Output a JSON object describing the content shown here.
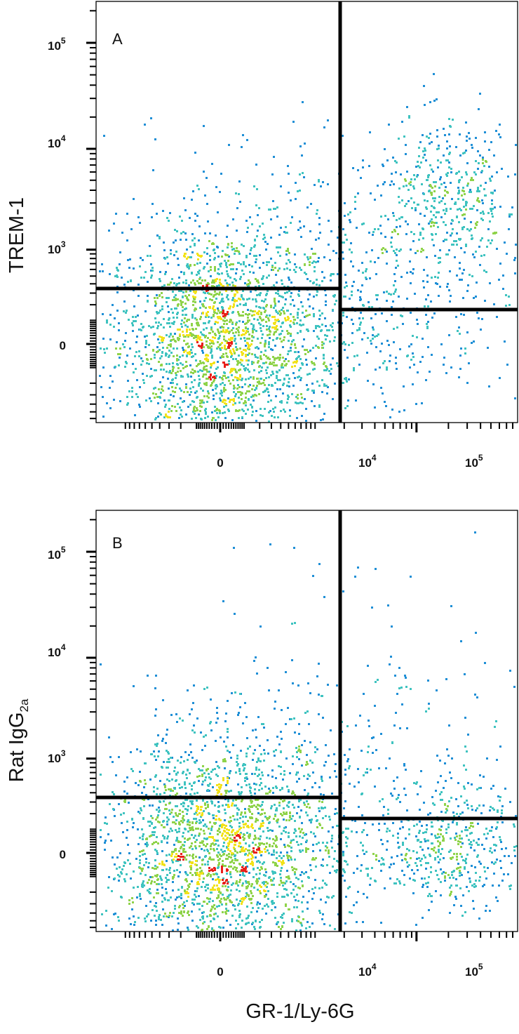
{
  "chart_data": [
    {
      "type": "scatter",
      "panel_label": "A",
      "ylabel": "TREM-1",
      "xlabel": "",
      "x_scale": "biexponential",
      "y_scale": "biexponential",
      "xticks": [
        {
          "base": "0",
          "exp": ""
        },
        {
          "base": "10",
          "exp": "4"
        },
        {
          "base": "10",
          "exp": "5"
        }
      ],
      "yticks": [
        {
          "base": "0",
          "exp": ""
        },
        {
          "base": "10",
          "exp": "3"
        },
        {
          "base": "10",
          "exp": "4"
        },
        {
          "base": "10",
          "exp": "5"
        }
      ],
      "quadrant_gates": {
        "x": 6500,
        "y_left": 400,
        "y_right": 240
      },
      "populations": [
        {
          "name": "",
          "center": [
            0,
            0
          ],
          "spread": [
            0.55,
            0.55
          ],
          "approx_events": 2300
        },
        {
          "name": "",
          "center": [
            2000,
            800
          ],
          "spread": [
            0.9,
            0.6
          ],
          "approx_events": 500
        },
        {
          "name": "",
          "center": [
            20000,
            3500
          ],
          "spread": [
            0.35,
            0.35
          ],
          "approx_events": 400
        },
        {
          "name": "",
          "center": [
            9000,
            60
          ],
          "spread": [
            0.4,
            0.45
          ],
          "approx_events": 120
        }
      ],
      "grid": false
    },
    {
      "type": "scatter",
      "panel_label": "B",
      "ylabel": "Rat IgG",
      "ylabel_sub": "2a",
      "xlabel": "GR-1/Ly-6G",
      "x_scale": "biexponential",
      "y_scale": "biexponential",
      "xticks": [
        {
          "base": "0",
          "exp": ""
        },
        {
          "base": "10",
          "exp": "4"
        },
        {
          "base": "10",
          "exp": "5"
        }
      ],
      "yticks": [
        {
          "base": "0",
          "exp": ""
        },
        {
          "base": "10",
          "exp": "3"
        },
        {
          "base": "10",
          "exp": "4"
        },
        {
          "base": "10",
          "exp": "5"
        }
      ],
      "quadrant_gates": {
        "x": 6500,
        "y_left": 400,
        "y_right": 240
      },
      "populations": [
        {
          "name": "",
          "center": [
            0,
            0
          ],
          "spread": [
            0.55,
            0.55
          ],
          "approx_events": 2300
        },
        {
          "name": "",
          "center": [
            1500,
            400
          ],
          "spread": [
            0.9,
            0.9
          ],
          "approx_events": 450
        },
        {
          "name": "",
          "center": [
            20000,
            40
          ],
          "spread": [
            0.35,
            0.3
          ],
          "approx_events": 450
        }
      ],
      "grid": false
    }
  ],
  "colors": {
    "density_low": "#2a3f9e",
    "density_mid1": "#1f8fd6",
    "density_mid2": "#3fc3c0",
    "density_mid3": "#8fd34a",
    "density_high": "#f2e21a",
    "density_peak": "#e8201a",
    "gate_line": "#000000"
  }
}
